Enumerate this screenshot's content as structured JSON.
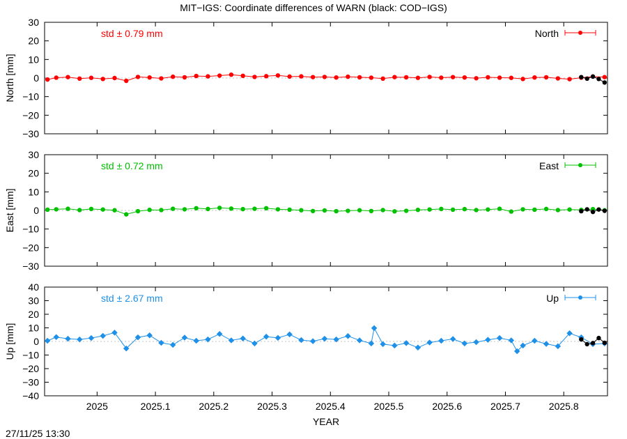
{
  "title": "MIT−IGS: Coordinate differences of WARN (black: COD−IGS)",
  "timestamp": "27/11/25 13:30",
  "colors": {
    "north": "#ff0000",
    "east": "#00c000",
    "up": "#1e90e8",
    "reference": "#000000",
    "frame": "#000000"
  },
  "chart_data": [
    {
      "type": "scatter",
      "ylabel": "North [mm]",
      "xlabel": "",
      "ylim": [
        -30,
        30
      ],
      "yticks": [
        30,
        20,
        10,
        0,
        -10,
        -20,
        -30
      ],
      "xlim": [
        2024.91,
        2025.875
      ],
      "std_label": "std ± 0.79 mm",
      "legend": {
        "name": "North",
        "position": "top-right"
      },
      "series": [
        {
          "name": "North",
          "color": "#ff0000",
          "x": [
            2024.915,
            2024.93,
            2024.95,
            2024.97,
            2024.99,
            2025.01,
            2025.03,
            2025.05,
            2025.07,
            2025.09,
            2025.11,
            2025.13,
            2025.15,
            2025.17,
            2025.19,
            2025.21,
            2025.23,
            2025.25,
            2025.27,
            2025.29,
            2025.31,
            2025.33,
            2025.35,
            2025.37,
            2025.39,
            2025.41,
            2025.43,
            2025.45,
            2025.47,
            2025.49,
            2025.51,
            2025.53,
            2025.55,
            2025.57,
            2025.59,
            2025.61,
            2025.63,
            2025.65,
            2025.67,
            2025.69,
            2025.71,
            2025.73,
            2025.75,
            2025.77,
            2025.79,
            2025.81,
            2025.83,
            2025.85,
            2025.87
          ],
          "y": [
            -0.8,
            0.2,
            0.5,
            -0.3,
            0.1,
            -0.5,
            0.0,
            -1.5,
            0.6,
            0.3,
            -0.2,
            0.7,
            0.4,
            1.1,
            0.9,
            1.3,
            1.8,
            1.2,
            0.6,
            1.0,
            1.4,
            0.8,
            0.9,
            0.5,
            0.6,
            0.3,
            0.7,
            0.4,
            0.2,
            -0.3,
            0.5,
            0.4,
            0.1,
            0.6,
            0.2,
            0.5,
            0.3,
            -0.1,
            0.4,
            0.2,
            0.1,
            -0.5,
            0.3,
            0.4,
            -0.2,
            -0.6,
            0.2,
            0.8,
            0.5
          ]
        },
        {
          "name": "",
          "color": "#000000",
          "x": [
            2025.83,
            2025.84,
            2025.85,
            2025.86,
            2025.87
          ],
          "y": [
            0.5,
            -0.3,
            0.8,
            -0.5,
            -2.4
          ]
        }
      ]
    },
    {
      "type": "scatter",
      "ylabel": "East [mm]",
      "xlabel": "",
      "ylim": [
        -30,
        30
      ],
      "yticks": [
        30,
        20,
        10,
        0,
        -10,
        -20,
        -30
      ],
      "xlim": [
        2024.91,
        2025.875
      ],
      "std_label": "std ± 0.72 mm",
      "legend": {
        "name": "East",
        "position": "top-right"
      },
      "series": [
        {
          "name": "East",
          "color": "#00c000",
          "x": [
            2024.915,
            2024.93,
            2024.95,
            2024.97,
            2024.99,
            2025.01,
            2025.03,
            2025.05,
            2025.07,
            2025.09,
            2025.11,
            2025.13,
            2025.15,
            2025.17,
            2025.19,
            2025.21,
            2025.23,
            2025.25,
            2025.27,
            2025.29,
            2025.31,
            2025.33,
            2025.35,
            2025.37,
            2025.39,
            2025.41,
            2025.43,
            2025.45,
            2025.47,
            2025.49,
            2025.51,
            2025.53,
            2025.55,
            2025.57,
            2025.59,
            2025.61,
            2025.63,
            2025.65,
            2025.67,
            2025.69,
            2025.71,
            2025.73,
            2025.75,
            2025.77,
            2025.79,
            2025.81,
            2025.83,
            2025.85,
            2025.87
          ],
          "y": [
            0.4,
            0.6,
            0.9,
            0.2,
            0.8,
            0.5,
            0.1,
            -2.1,
            -0.4,
            0.3,
            0.2,
            0.9,
            0.6,
            1.2,
            0.8,
            1.4,
            1.0,
            0.7,
            0.9,
            1.2,
            0.6,
            0.4,
            0.1,
            -0.3,
            0.0,
            -0.4,
            -0.2,
            0.1,
            -0.3,
            0.2,
            -0.5,
            -0.2,
            0.3,
            0.5,
            0.8,
            0.4,
            0.7,
            0.2,
            0.5,
            0.9,
            -0.6,
            0.6,
            0.4,
            0.8,
            0.2,
            0.5,
            0.3,
            0.7,
            0.1
          ]
        },
        {
          "name": "",
          "color": "#000000",
          "x": [
            2025.83,
            2025.84,
            2025.85,
            2025.86,
            2025.87
          ],
          "y": [
            -0.4,
            0.6,
            -0.8,
            0.5,
            -0.2
          ]
        }
      ]
    },
    {
      "type": "scatter",
      "ylabel": "Up [mm]",
      "xlabel": "YEAR",
      "ylim": [
        -40,
        40
      ],
      "yticks": [
        40,
        30,
        20,
        10,
        0,
        -10,
        -20,
        -30,
        -40
      ],
      "xlim": [
        2024.91,
        2025.875
      ],
      "xticks": [
        2025,
        2025.1,
        2025.2,
        2025.3,
        2025.4,
        2025.5,
        2025.6,
        2025.7,
        2025.8
      ],
      "xticklabels": [
        "2025",
        "2025.1",
        "2025.2",
        "2025.3",
        "2025.4",
        "2025.5",
        "2025.6",
        "2025.7",
        "2025.8"
      ],
      "std_label": "std ± 2.67 mm",
      "legend": {
        "name": "Up",
        "position": "top-right"
      },
      "series": [
        {
          "name": "Up",
          "color": "#1e90e8",
          "x": [
            2024.915,
            2024.93,
            2024.95,
            2024.97,
            2024.99,
            2025.01,
            2025.03,
            2025.05,
            2025.07,
            2025.09,
            2025.11,
            2025.13,
            2025.15,
            2025.17,
            2025.19,
            2025.21,
            2025.23,
            2025.25,
            2025.27,
            2025.29,
            2025.31,
            2025.33,
            2025.35,
            2025.37,
            2025.39,
            2025.41,
            2025.43,
            2025.45,
            2025.47,
            2025.475,
            2025.49,
            2025.51,
            2025.53,
            2025.55,
            2025.57,
            2025.59,
            2025.61,
            2025.63,
            2025.65,
            2025.67,
            2025.69,
            2025.71,
            2025.72,
            2025.73,
            2025.75,
            2025.77,
            2025.79,
            2025.81,
            2025.83,
            2025.85,
            2025.87
          ],
          "y": [
            0.5,
            3.2,
            2.0,
            1.5,
            2.5,
            4.1,
            6.5,
            -5.2,
            3.0,
            4.5,
            -1.0,
            -2.5,
            2.8,
            0.5,
            1.5,
            5.5,
            0.8,
            2.2,
            -1.5,
            3.5,
            2.6,
            5.2,
            1.0,
            0.2,
            2.0,
            1.5,
            4.0,
            0.8,
            -1.5,
            9.8,
            -2.0,
            -3.0,
            -1.2,
            -4.5,
            -0.8,
            0.5,
            1.8,
            -1.5,
            -0.5,
            1.2,
            2.5,
            0.8,
            -7.2,
            -3.0,
            0.5,
            -1.8,
            -3.5,
            6.0,
            3.0,
            -2.0,
            -1.5
          ]
        },
        {
          "name": "",
          "color": "#000000",
          "x": [
            2025.83,
            2025.84,
            2025.85,
            2025.86,
            2025.87
          ],
          "y": [
            1.5,
            -2.0,
            -1.2,
            2.5,
            -1.0
          ]
        }
      ]
    }
  ]
}
